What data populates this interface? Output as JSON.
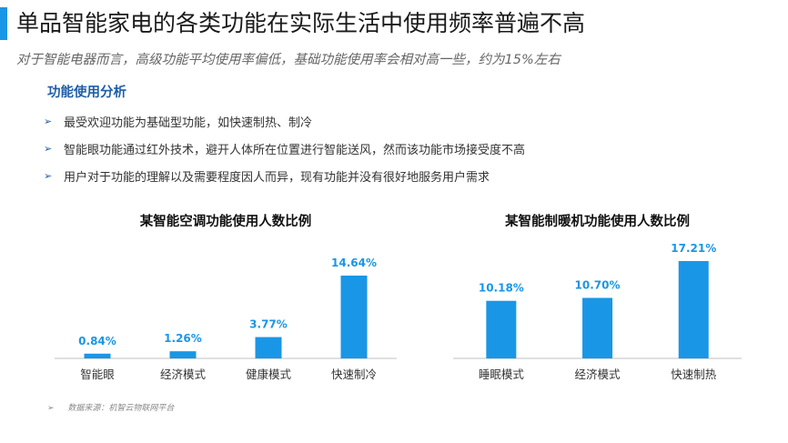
{
  "header": {
    "title": "单品智能家电的各类功能在实际生活中使用频率普遍不高",
    "subtitle": "对于智能电器而言，高级功能平均使用率偏低，基础功能使用率会相对高一些，约为15%左右"
  },
  "analysis": {
    "heading": "功能使用分析",
    "bullet_glyph": "➢",
    "items": [
      "最受欢迎功能为基础型功能，如快速制热、制冷",
      "智能眼功能通过红外技术，避开人体所在位置进行智能送风，然而该功能市场接受度不高",
      "用户对于功能的理解以及需要程度因人而异，现有功能并没有很好地服务用户需求"
    ]
  },
  "footer": {
    "source_glyph": "➢",
    "source": "数据来源：机智云物联网平台"
  },
  "colors": {
    "accent": "#1a96e6",
    "heading": "#1f5ea8",
    "bullet": "#1f5ea8",
    "axis": "#bfbfbf"
  },
  "chart_data": [
    {
      "type": "bar",
      "title": "某智能空调功能使用人数比例",
      "categories": [
        "智能眼",
        "经济模式",
        "健康模式",
        "快速制冷"
      ],
      "values": [
        0.84,
        1.26,
        3.77,
        14.64
      ],
      "value_labels": [
        "0.84%",
        "1.26%",
        "3.77%",
        "14.64%"
      ],
      "unit": "%",
      "ylim": [
        0,
        17.21
      ],
      "grid": false,
      "legend": "none"
    },
    {
      "type": "bar",
      "title": "某智能制暖机功能使用人数比例",
      "categories": [
        "睡眠模式",
        "经济模式",
        "快速制热"
      ],
      "values": [
        10.18,
        10.7,
        17.21
      ],
      "value_labels": [
        "10.18%",
        "10.70%",
        "17.21%"
      ],
      "unit": "%",
      "ylim": [
        0,
        17.21
      ],
      "grid": false,
      "legend": "none"
    }
  ]
}
